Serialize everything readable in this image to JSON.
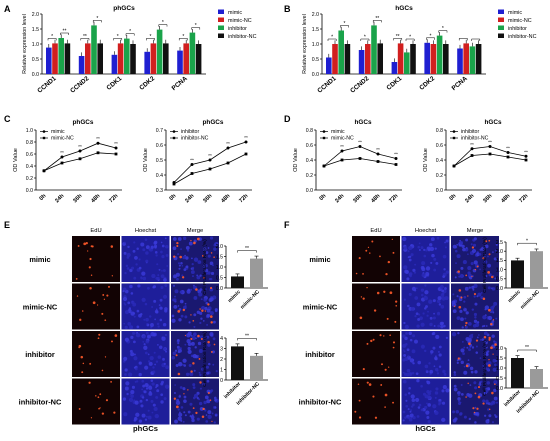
{
  "panel_letters": [
    "A",
    "B",
    "C",
    "D",
    "E",
    "F"
  ],
  "chart_data": [
    {
      "id": "A",
      "type": "bar",
      "title": "phGCs",
      "ylabel": "Relative expression level",
      "ylim": [
        0,
        2.0
      ],
      "yticks": [
        "0.0",
        "0.5",
        "1.0",
        "1.5",
        "2.0"
      ],
      "categories": [
        "CCND1",
        "CCND2",
        "CDK1",
        "CDK2",
        "PCNA"
      ],
      "legend": "top-right",
      "series": [
        {
          "name": "mimic",
          "color": "#1f1fd1",
          "values": [
            0.88,
            0.6,
            0.64,
            0.74,
            0.78
          ]
        },
        {
          "name": "mimic-NC",
          "color": "#d11f1f",
          "values": [
            1.02,
            1.02,
            1.02,
            1.02,
            1.02
          ]
        },
        {
          "name": "inhibitor",
          "color": "#1aa34a",
          "values": [
            1.2,
            1.62,
            1.18,
            1.48,
            1.38
          ]
        },
        {
          "name": "inhibitor-NC",
          "color": "#111111",
          "values": [
            1.02,
            1.02,
            1.0,
            1.02,
            1.0
          ]
        }
      ],
      "sig": [
        "*",
        "**",
        "**",
        "*",
        "*",
        "*",
        "*",
        "*",
        "*",
        "*"
      ]
    },
    {
      "id": "B",
      "type": "bar",
      "title": "hGCs",
      "ylabel": "Relative expression level",
      "ylim": [
        0,
        2.0
      ],
      "yticks": [
        "0.0",
        "0.5",
        "1.0",
        "1.5",
        "2.0"
      ],
      "categories": [
        "CCND1",
        "CCND2",
        "CDK1",
        "CDK2",
        "PCNA"
      ],
      "legend": "top-right",
      "series": [
        {
          "name": "mimic",
          "color": "#1f1fd1",
          "values": [
            0.55,
            0.8,
            0.4,
            1.04,
            0.85
          ]
        },
        {
          "name": "mimic-NC",
          "color": "#d11f1f",
          "values": [
            1.0,
            1.0,
            1.02,
            1.0,
            1.02
          ]
        },
        {
          "name": "inhibitor",
          "color": "#1aa34a",
          "values": [
            1.45,
            1.62,
            0.72,
            1.28,
            0.92
          ]
        },
        {
          "name": "inhibitor-NC",
          "color": "#111111",
          "values": [
            1.0,
            1.02,
            1.0,
            1.0,
            1.0
          ]
        }
      ],
      "sig": [
        "*",
        "*",
        "*",
        "**",
        "**",
        "*",
        "*",
        "*"
      ]
    },
    {
      "id": "C1",
      "type": "line",
      "title": "phGCs",
      "ylabel": "OD Value",
      "ylim": [
        0.0,
        1.0
      ],
      "yticks": [
        "0.0",
        "0.2",
        "0.4",
        "0.6",
        "0.8",
        "1.0"
      ],
      "x": [
        "0h",
        "24h",
        "36h",
        "48h",
        "72h"
      ],
      "legend": "top-left",
      "series": [
        {
          "name": "mimic",
          "marker": "circle",
          "values": [
            0.32,
            0.55,
            0.65,
            0.78,
            0.7
          ]
        },
        {
          "name": "mimic-NC",
          "marker": "square",
          "values": [
            0.32,
            0.45,
            0.52,
            0.62,
            0.6
          ]
        }
      ],
      "sig": [
        "**",
        "**",
        "**",
        "**"
      ]
    },
    {
      "id": "C2",
      "type": "line",
      "title": "phGCs",
      "ylabel": "OD Value",
      "ylim": [
        0.3,
        0.7
      ],
      "yticks": [
        "0.3",
        "0.4",
        "0.5",
        "0.6",
        "0.7"
      ],
      "x": [
        "0h",
        "24h",
        "36h",
        "48h",
        "72h"
      ],
      "legend": "top-left",
      "series": [
        {
          "name": "inhibitor",
          "marker": "circle",
          "values": [
            0.35,
            0.47,
            0.5,
            0.58,
            0.62
          ]
        },
        {
          "name": "inhibitor-NC",
          "marker": "square",
          "values": [
            0.34,
            0.41,
            0.44,
            0.48,
            0.54
          ]
        }
      ],
      "sig": [
        "**",
        "**",
        "**",
        "**"
      ]
    },
    {
      "id": "D1",
      "type": "line",
      "title": "hGCs",
      "ylabel": "OD Value",
      "ylim": [
        0.0,
        0.8
      ],
      "yticks": [
        "0.0",
        "0.2",
        "0.4",
        "0.6",
        "0.8"
      ],
      "x": [
        "0h",
        "24h",
        "36h",
        "48h",
        "72h"
      ],
      "legend": "top-left",
      "series": [
        {
          "name": "mimic",
          "marker": "circle",
          "values": [
            0.32,
            0.52,
            0.58,
            0.48,
            0.42
          ]
        },
        {
          "name": "mimic-NC",
          "marker": "square",
          "values": [
            0.32,
            0.4,
            0.42,
            0.38,
            0.34
          ]
        }
      ],
      "sig": [
        "**",
        "**",
        "**",
        "**"
      ]
    },
    {
      "id": "D2",
      "type": "line",
      "title": "hGCs",
      "ylabel": "OD Value",
      "ylim": [
        0.0,
        0.8
      ],
      "yticks": [
        "0.0",
        "0.2",
        "0.4",
        "0.6",
        "0.8"
      ],
      "x": [
        "0h",
        "24h",
        "36h",
        "48h",
        "72h"
      ],
      "legend": "top-left",
      "series": [
        {
          "name": "inhibitor",
          "marker": "circle",
          "values": [
            0.32,
            0.55,
            0.58,
            0.5,
            0.45
          ]
        },
        {
          "name": "inhibitor-NC",
          "marker": "square",
          "values": [
            0.32,
            0.46,
            0.48,
            0.44,
            0.4
          ]
        }
      ],
      "sig": [
        "**",
        "**",
        "**",
        "**"
      ]
    },
    {
      "id": "E1",
      "type": "bar",
      "ylabel": "Cell Proliferation Rate (%)",
      "ylim": [
        0,
        2.0
      ],
      "yticks": [
        "0.0",
        "0.5",
        "1.0",
        "1.5",
        "2.0"
      ],
      "categories": [
        "mimic",
        "mimic-NC"
      ],
      "colors": [
        "#111111",
        "#9a9a9a"
      ],
      "values": [
        0.55,
        1.4
      ],
      "sig": "**"
    },
    {
      "id": "E2",
      "type": "bar",
      "ylabel": "Cell Proliferation Rate (%)",
      "ylim": [
        0,
        4
      ],
      "yticks": [
        "0",
        "1",
        "2",
        "3",
        "4"
      ],
      "categories": [
        "inhibitor",
        "inhibitor-NC"
      ],
      "colors": [
        "#111111",
        "#9a9a9a"
      ],
      "values": [
        3.2,
        2.3
      ],
      "sig": "**"
    },
    {
      "id": "F1",
      "type": "bar",
      "ylabel": "Cell Proliferation Rate (%)",
      "ylim": [
        0,
        2.5
      ],
      "yticks": [
        "0.0",
        "0.5",
        "1.0",
        "1.5",
        "2.0",
        "2.5"
      ],
      "categories": [
        "mimic",
        "mimic-NC"
      ],
      "colors": [
        "#111111",
        "#9a9a9a"
      ],
      "values": [
        1.5,
        2.0
      ],
      "sig": "*"
    },
    {
      "id": "F2",
      "type": "bar",
      "ylabel": "Cell Proliferation Rate (%)",
      "ylim": [
        0,
        2.0
      ],
      "yticks": [
        "0.0",
        "0.5",
        "1.0",
        "1.5",
        "2.0"
      ],
      "categories": [
        "inhibitor",
        "inhibitor-NC"
      ],
      "colors": [
        "#111111",
        "#9a9a9a"
      ],
      "values": [
        1.5,
        0.95
      ],
      "sig": "**"
    }
  ],
  "microscopy": [
    {
      "panel": "E",
      "columns": [
        "EdU",
        "Hoechst",
        "Merge"
      ],
      "rows": [
        "mimic",
        "mimic-NC",
        "inhibitor",
        "inhibitor-NC"
      ],
      "caption": "phGCs"
    },
    {
      "panel": "F",
      "columns": [
        "EdU",
        "Hoechst",
        "Merge"
      ],
      "rows": [
        "mimic",
        "mimic-NC",
        "inhibitor",
        "inhibitor-NC"
      ],
      "caption": "hGCs"
    }
  ]
}
